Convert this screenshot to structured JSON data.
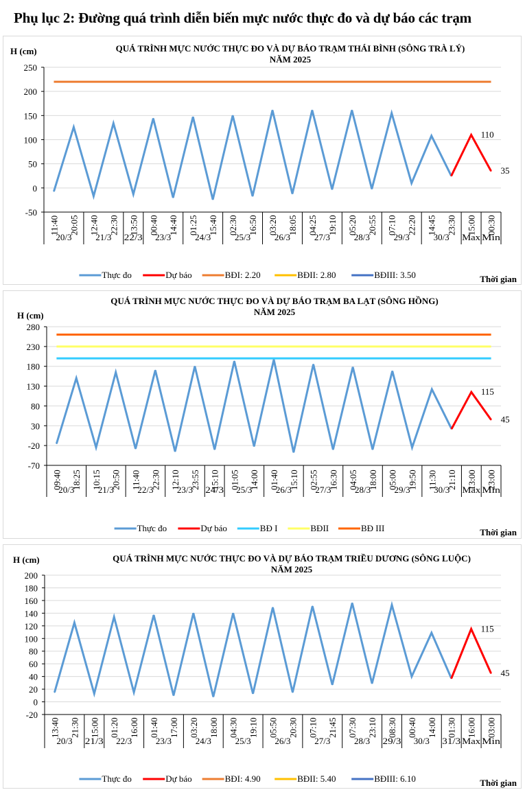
{
  "page_title": "Phụ lục 2: Đường quá trình diễn biến mực nước thực đo và dự báo các trạm",
  "chart_data": [
    {
      "type": "line",
      "title": "QUÁ TRÌNH MỰC NƯỚC THỰC ĐO VÀ DỰ BÁO TRẠM THÁI BÌNH (SÔNG TRÀ LÝ)",
      "subtitle": "NĂM 2025",
      "ylabel": "H (cm)",
      "xlabel": "Thời gian",
      "ylim": [
        -50,
        250
      ],
      "yticks": [
        -50,
        0,
        50,
        100,
        150,
        200,
        250
      ],
      "grid": true,
      "legend": "bottom",
      "x": [
        "11:40",
        "20:05",
        "12:40",
        "22:30",
        "13:50",
        "00:40",
        "14:40",
        "01:25",
        "15:40",
        "02:30",
        "16:50",
        "03:20",
        "18:05",
        "04:25",
        "19:10",
        "05:20",
        "20:55",
        "07:10",
        "22:20",
        "14:45",
        "23:30",
        "15:00",
        "00:30"
      ],
      "groups": [
        {
          "label": "20/3",
          "span": 2
        },
        {
          "label": "21/3",
          "span": 2
        },
        {
          "label": "22/3",
          "span": 1
        },
        {
          "label": "23/3",
          "span": 2
        },
        {
          "label": "24/3",
          "span": 2
        },
        {
          "label": "25/3",
          "span": 2
        },
        {
          "label": "26/3",
          "span": 2
        },
        {
          "label": "27/3",
          "span": 2
        },
        {
          "label": "28/3",
          "span": 2
        },
        {
          "label": "29/3",
          "span": 2
        },
        {
          "label": "30/3",
          "span": 2
        },
        {
          "label": "Max",
          "span": 1
        },
        {
          "label": "Min",
          "span": 1
        }
      ],
      "series": [
        {
          "name": "Thực đo",
          "color": "#5b9bd5",
          "values": [
            -7,
            126,
            -17,
            134,
            -13,
            144,
            -20,
            147,
            -24,
            150,
            -17,
            161,
            -12,
            161,
            -3,
            161,
            -2,
            155,
            10,
            108,
            25,
            null,
            null
          ]
        },
        {
          "name": "Dự báo",
          "color": "#ff0000",
          "values": [
            null,
            null,
            null,
            null,
            null,
            null,
            null,
            null,
            null,
            null,
            null,
            null,
            null,
            null,
            null,
            null,
            null,
            null,
            null,
            null,
            25,
            110,
            35
          ]
        }
      ],
      "reference_lines": [
        {
          "name": "BĐI: 2.20",
          "color": "#ed7d31",
          "value": 220,
          "drawn": true
        },
        {
          "name": "BĐII: 2.80",
          "color": "#ffc000",
          "value": 280,
          "drawn": false
        },
        {
          "name": "BĐIII: 3.50",
          "color": "#4472c4",
          "value": 350,
          "drawn": false
        }
      ],
      "data_labels": [
        {
          "index": 21,
          "text": "110"
        },
        {
          "index": 22,
          "text": "35"
        }
      ]
    },
    {
      "type": "line",
      "title": "QUÁ TRÌNH MỰC NƯỚC THỰC ĐO VÀ DỰ BÁO TRẠM BA LẠT (SÔNG HỒNG)",
      "subtitle": "NĂM 2025",
      "ylabel": "H (cm)",
      "xlabel": "Thời gian",
      "ylim": [
        -70,
        280
      ],
      "yticks": [
        -70,
        -20,
        30,
        80,
        130,
        180,
        230,
        280
      ],
      "grid": true,
      "legend": "bottom",
      "x": [
        "09:40",
        "18:25",
        "10:15",
        "20:50",
        "11:40",
        "22:30",
        "12:10",
        "23:55",
        "15:10",
        "01:05",
        "14:00",
        "01:40",
        "15:10",
        "02:55",
        "16:30",
        "04:05",
        "18:00",
        "05:00",
        "19:50",
        "11:30",
        "21:10",
        "13:00",
        "23:00"
      ],
      "groups": [
        {
          "label": "20/3",
          "span": 2
        },
        {
          "label": "21/3",
          "span": 2
        },
        {
          "label": "22/3",
          "span": 2
        },
        {
          "label": "23/3",
          "span": 2
        },
        {
          "label": "24/3",
          "span": 1
        },
        {
          "label": "25/3",
          "span": 2
        },
        {
          "label": "26/3",
          "span": 2
        },
        {
          "label": "27/3",
          "span": 2
        },
        {
          "label": "28/3",
          "span": 2
        },
        {
          "label": "29/3",
          "span": 2
        },
        {
          "label": "30/3",
          "span": 2
        },
        {
          "label": "Max",
          "span": 1
        },
        {
          "label": "Min",
          "span": 1
        }
      ],
      "series": [
        {
          "name": "Thực đo",
          "color": "#5b9bd5",
          "values": [
            -15,
            150,
            -25,
            165,
            -28,
            170,
            -35,
            180,
            -30,
            193,
            -22,
            197,
            -37,
            185,
            -30,
            178,
            -30,
            168,
            -25,
            122,
            22,
            null,
            null
          ]
        },
        {
          "name": "Dự báo",
          "color": "#ff0000",
          "values": [
            null,
            null,
            null,
            null,
            null,
            null,
            null,
            null,
            null,
            null,
            null,
            null,
            null,
            null,
            null,
            null,
            null,
            null,
            null,
            null,
            22,
            115,
            45
          ]
        }
      ],
      "reference_lines": [
        {
          "name": "BĐ I",
          "color": "#33ccff",
          "value": 200,
          "drawn": true
        },
        {
          "name": "BĐII",
          "color": "#ffff66",
          "value": 230,
          "drawn": true
        },
        {
          "name": "BĐ III",
          "color": "#ff6600",
          "value": 260,
          "drawn": true
        }
      ],
      "data_labels": [
        {
          "index": 21,
          "text": "115"
        },
        {
          "index": 22,
          "text": "45"
        }
      ]
    },
    {
      "type": "line",
      "title": "QUÁ TRÌNH MỰC NƯỚC THỰC ĐO VÀ DỰ BÁO TRẠM TRIỀU DƯƠNG  (SÔNG LUỘC)",
      "subtitle": "NĂM 2025",
      "ylabel": "H (cm)",
      "xlabel": "Thời gian",
      "ylim": [
        -20,
        200
      ],
      "yticks": [
        -20,
        0,
        20,
        40,
        60,
        80,
        100,
        120,
        140,
        160,
        180,
        200
      ],
      "grid": true,
      "legend": "bottom",
      "x": [
        "13:40",
        "21:30",
        "15:00",
        "01:20",
        "16:00",
        "01:40",
        "17:00",
        "03:20",
        "18:00",
        "04:30",
        "19:10",
        "05:50",
        "20:30",
        "07:10",
        "21:45",
        "07:30",
        "23:10",
        "08:30",
        "00:40",
        "14:00",
        "01:30",
        "16:00",
        "03:00"
      ],
      "groups": [
        {
          "label": "20/3",
          "span": 2
        },
        {
          "label": "21/3",
          "span": 1
        },
        {
          "label": "22/3",
          "span": 2
        },
        {
          "label": "23/3",
          "span": 2
        },
        {
          "label": "24/3",
          "span": 2
        },
        {
          "label": "25/3",
          "span": 2
        },
        {
          "label": "26/3",
          "span": 2
        },
        {
          "label": "27/3",
          "span": 2
        },
        {
          "label": "28/3",
          "span": 2
        },
        {
          "label": "29/3",
          "span": 1
        },
        {
          "label": "30/3",
          "span": 2
        },
        {
          "label": "31/3",
          "span": 1
        },
        {
          "label": "Max",
          "span": 1
        },
        {
          "label": "Min",
          "span": 1
        }
      ],
      "series": [
        {
          "name": "Thực đo",
          "color": "#5b9bd5",
          "values": [
            15,
            125,
            13,
            134,
            15,
            137,
            10,
            140,
            8,
            140,
            13,
            149,
            15,
            151,
            27,
            156,
            29,
            153,
            40,
            109,
            37,
            null,
            null
          ]
        },
        {
          "name": "Dự báo",
          "color": "#ff0000",
          "values": [
            null,
            null,
            null,
            null,
            null,
            null,
            null,
            null,
            null,
            null,
            null,
            null,
            null,
            null,
            null,
            null,
            null,
            null,
            null,
            null,
            37,
            115,
            45
          ]
        }
      ],
      "reference_lines": [
        {
          "name": "BĐI: 4.90",
          "color": "#ed7d31",
          "value": 490,
          "drawn": false
        },
        {
          "name": "BĐII: 5.40",
          "color": "#ffc000",
          "value": 540,
          "drawn": false
        },
        {
          "name": "BĐIII: 6.10",
          "color": "#4472c4",
          "value": 610,
          "drawn": false
        }
      ],
      "data_labels": [
        {
          "index": 21,
          "text": "115"
        },
        {
          "index": 22,
          "text": "45"
        }
      ]
    }
  ]
}
